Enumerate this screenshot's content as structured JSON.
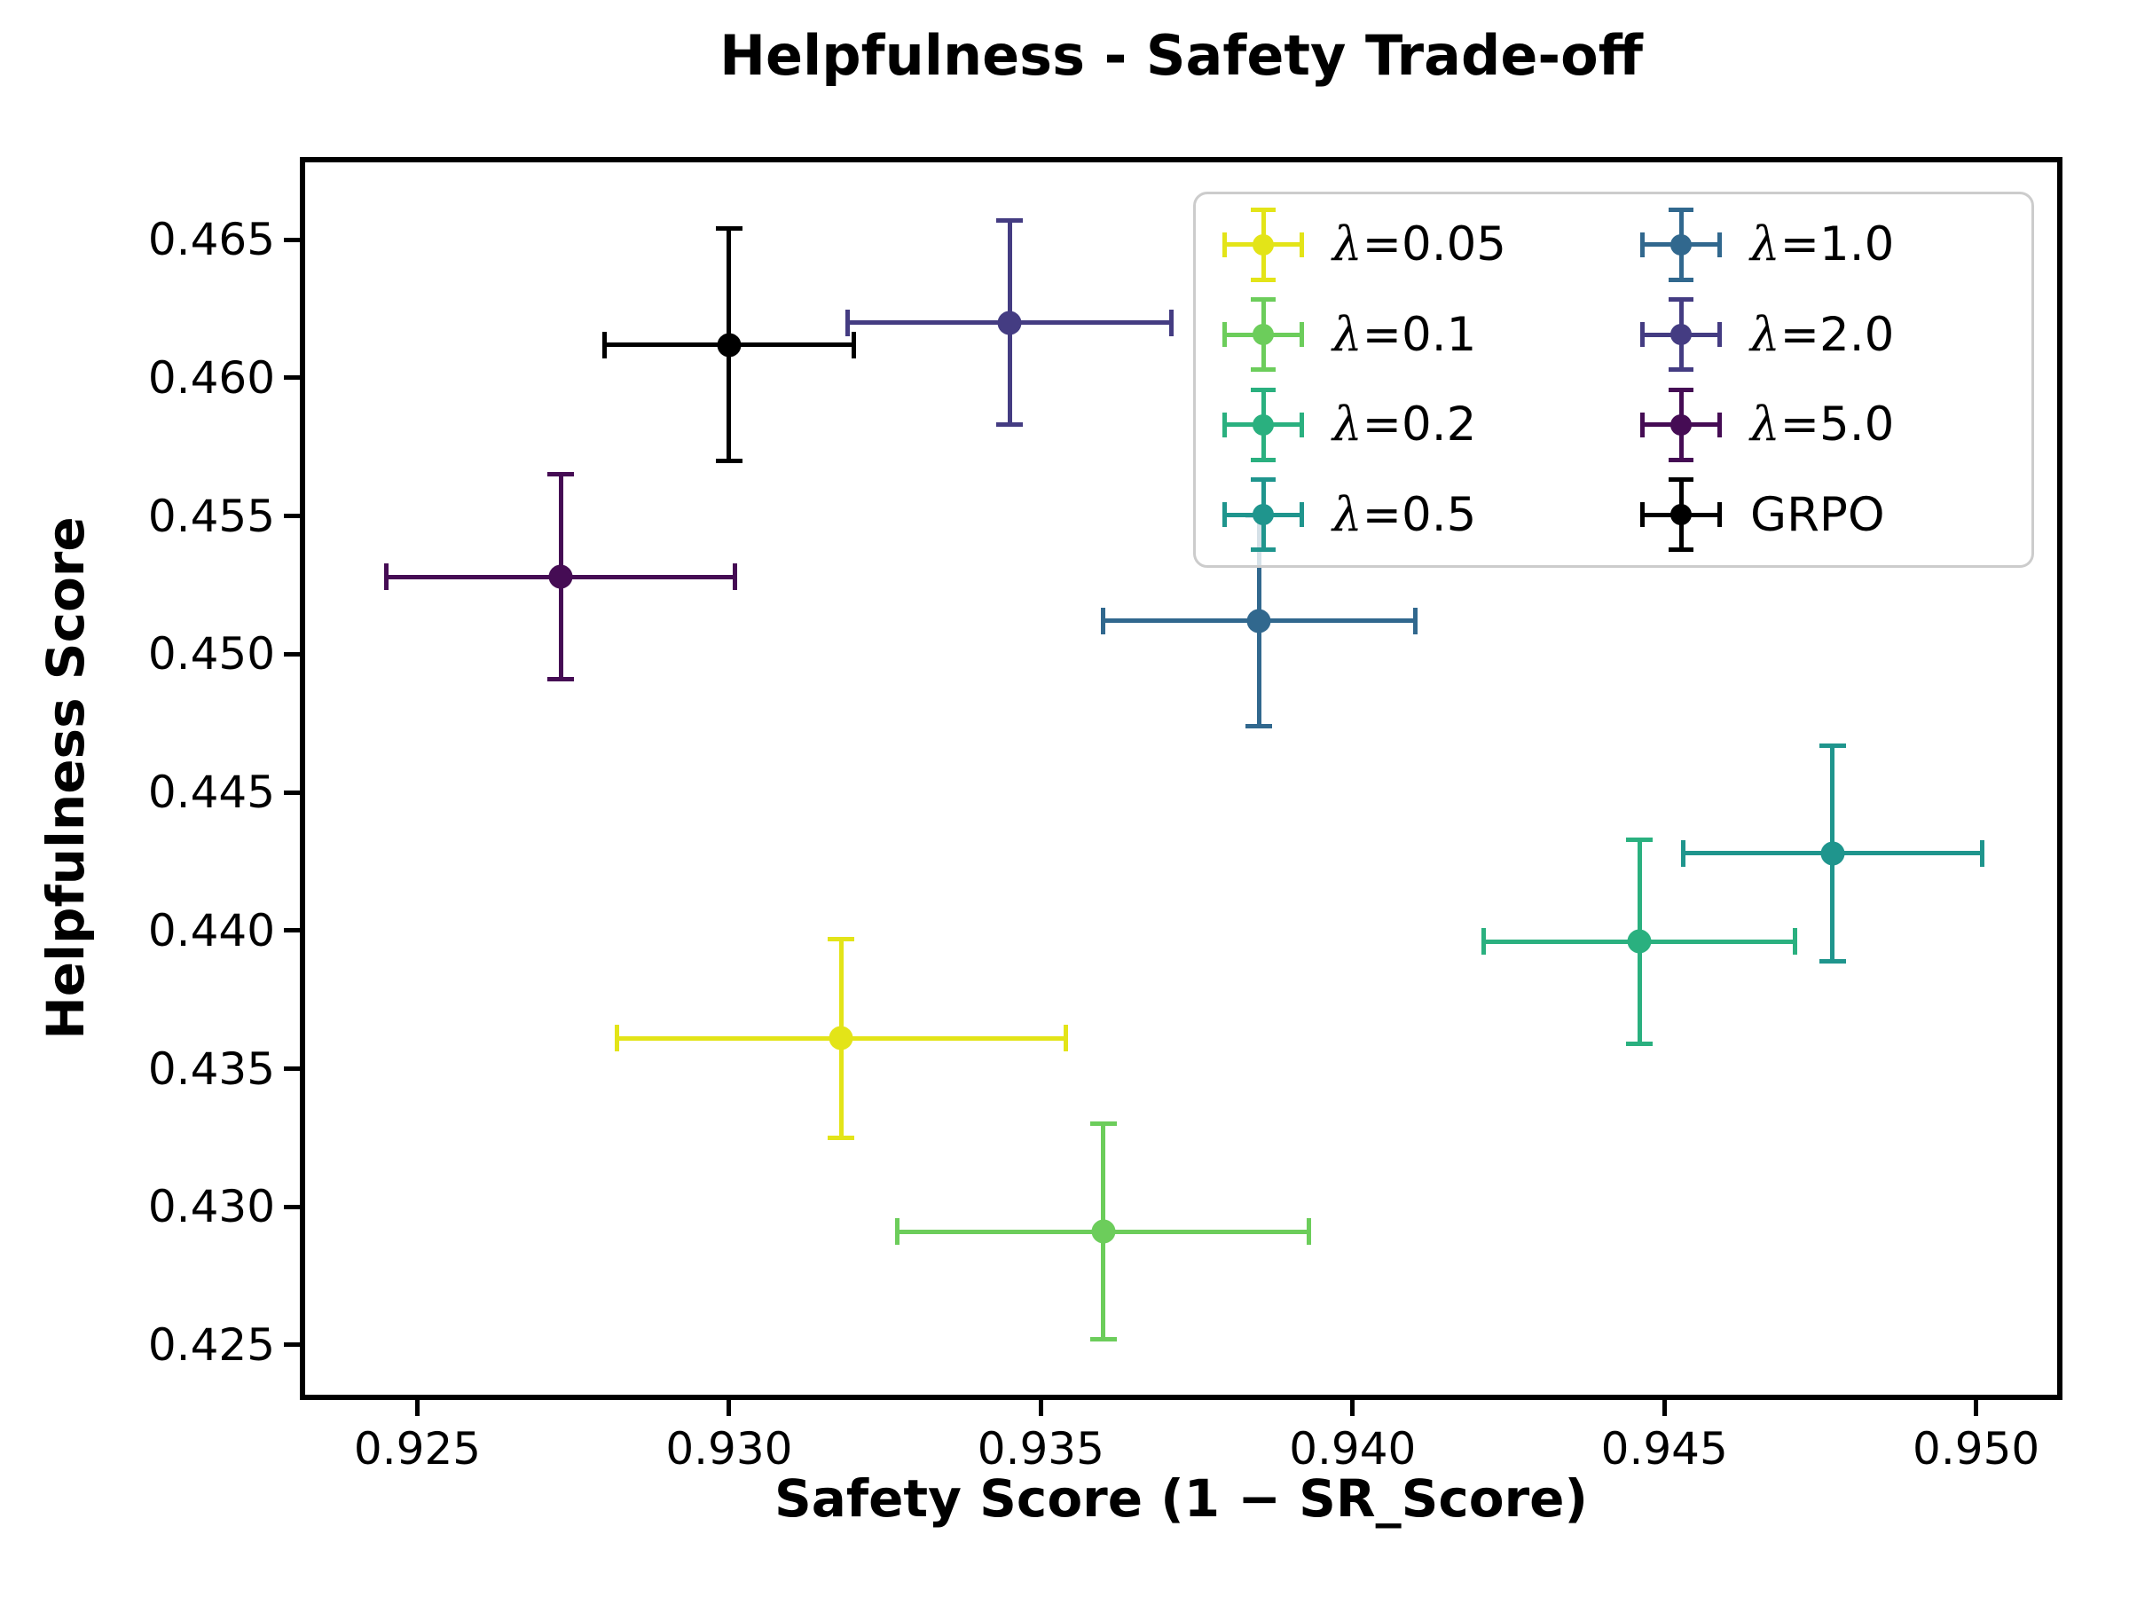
{
  "chart_data": {
    "type": "scatter",
    "title": "Helpfulness - Safety Trade-off",
    "xlabel": "Safety Score (1 − SR_Score)",
    "ylabel": "Helpfulness Score",
    "xlim": [
      0.9232,
      0.9513
    ],
    "ylim": [
      0.4232,
      0.4678
    ],
    "x_ticks": [
      0.925,
      0.93,
      0.935,
      0.94,
      0.945,
      0.95
    ],
    "y_ticks": [
      0.425,
      0.43,
      0.435,
      0.44,
      0.445,
      0.45,
      0.455,
      0.46,
      0.465
    ],
    "grid": false,
    "legend_position": "upper right",
    "legend_columns": 2,
    "series": [
      {
        "name": "λ=0.05",
        "color": "#e3e418",
        "x": 0.9318,
        "y": 0.4361,
        "xerr": 0.0036,
        "yerr": 0.0036
      },
      {
        "name": "λ=0.1",
        "color": "#6ccd5b",
        "x": 0.936,
        "y": 0.4291,
        "xerr": 0.0033,
        "yerr": 0.0039
      },
      {
        "name": "λ=0.2",
        "color": "#2ab07f",
        "x": 0.9446,
        "y": 0.4396,
        "xerr": 0.0025,
        "yerr": 0.0037
      },
      {
        "name": "λ=0.5",
        "color": "#1f958d",
        "x": 0.9477,
        "y": 0.4428,
        "xerr": 0.0024,
        "yerr": 0.0039
      },
      {
        "name": "λ=1.0",
        "color": "#31688e",
        "x": 0.9385,
        "y": 0.4512,
        "xerr": 0.0025,
        "yerr": 0.0038
      },
      {
        "name": "λ=2.0",
        "color": "#443c82",
        "x": 0.9345,
        "y": 0.462,
        "xerr": 0.0026,
        "yerr": 0.0037
      },
      {
        "name": "λ=5.0",
        "color": "#450c54",
        "x": 0.9273,
        "y": 0.4528,
        "xerr": 0.0028,
        "yerr": 0.0037
      },
      {
        "name": "GRPO",
        "color": "#000000",
        "x": 0.93,
        "y": 0.4612,
        "xerr": 0.002,
        "yerr": 0.0042
      }
    ]
  }
}
